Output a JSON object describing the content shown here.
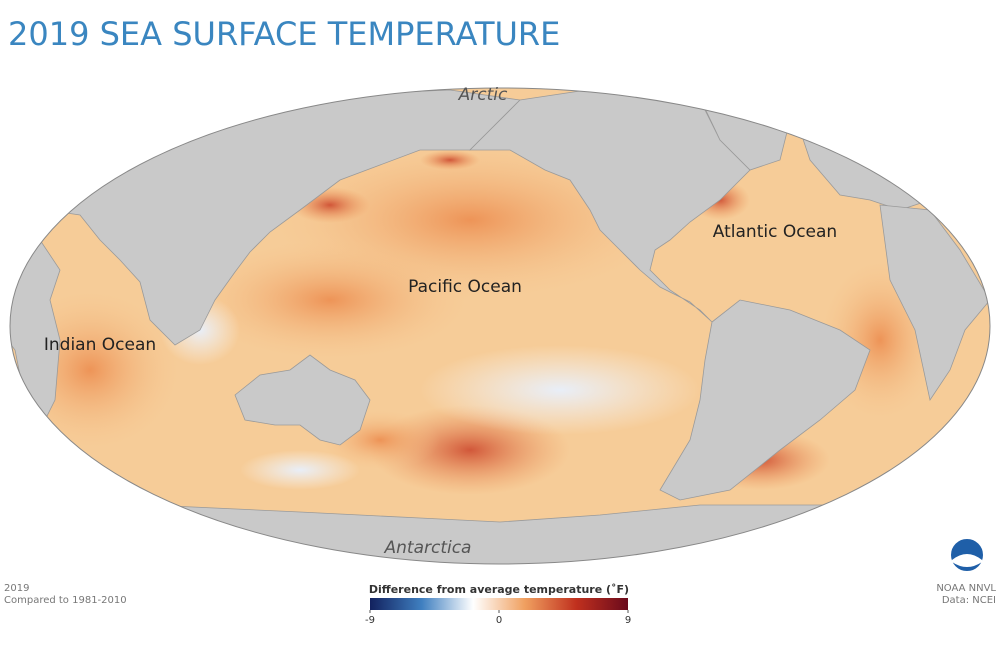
{
  "header": {
    "title": "2019 SEA SURFACE TEMPERATURE"
  },
  "map": {
    "labels": {
      "arctic": "Arctic",
      "pacific": "Pacific Ocean",
      "atlantic": "Atlantic Ocean",
      "indian": "Indian Ocean",
      "antarctica": "Antarctica"
    }
  },
  "footer": {
    "year": "2019",
    "baseline": "Compared to 1981-2010",
    "credit": "NOAA NNVL",
    "source": "Data: NCEI"
  },
  "legend": {
    "title": "Difference from average temperature (˚F)",
    "range": [
      -9,
      9
    ],
    "ticks": [
      -9,
      0,
      9
    ],
    "colors": [
      "#12215e",
      "#3f7fc0",
      "#ffffff",
      "#f0a060",
      "#c0301e",
      "#6a0a1c"
    ]
  }
}
